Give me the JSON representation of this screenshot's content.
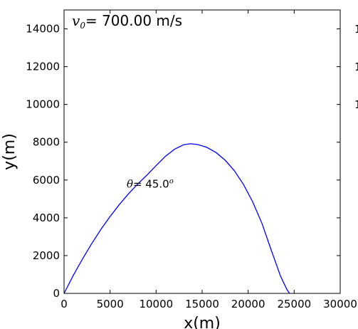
{
  "chart_data": {
    "type": "line",
    "xlabel": "x(m)",
    "ylabel": "y(m)",
    "xlim": [
      0,
      30000
    ],
    "ylim": [
      0,
      15000
    ],
    "x_ticks": [
      0,
      5000,
      10000,
      15000,
      20000,
      25000,
      30000
    ],
    "y_ticks": [
      0,
      2000,
      4000,
      6000,
      8000,
      10000,
      12000,
      14000
    ],
    "x_tick_labels": [
      "0",
      "5000",
      "10000",
      "15000",
      "20000",
      "25000",
      "30000"
    ],
    "y_tick_labels": [
      "0",
      "2000",
      "4000",
      "6000",
      "8000",
      "10000",
      "12000",
      "14000"
    ],
    "grid": false,
    "series": [
      {
        "color": "#0000ff",
        "x": [
          0,
          1000,
          2000,
          3000,
          4000,
          5000,
          6000,
          7000,
          8000,
          9000,
          10000,
          11000,
          12000,
          13000,
          13700,
          14500,
          15500,
          16500,
          17500,
          18500,
          19500,
          20500,
          21500,
          22500,
          23500,
          24200,
          24500
        ],
        "y": [
          0,
          950,
          1820,
          2630,
          3380,
          4070,
          4700,
          5270,
          5790,
          6260,
          6760,
          7250,
          7630,
          7870,
          7920,
          7880,
          7730,
          7460,
          7050,
          6490,
          5760,
          4840,
          3700,
          2300,
          940,
          210,
          0
        ]
      }
    ],
    "annotations": {
      "velocity_symbol": "v",
      "velocity_subscript": "0",
      "velocity_text": "= 700.00 m/s",
      "angle_symbol": "θ",
      "angle_text": "= 45.0",
      "angle_superscript": "o",
      "angle_x": 6800,
      "angle_y": 5600
    },
    "clipped_right_labels": [
      "1",
      "1",
      "1"
    ]
  }
}
